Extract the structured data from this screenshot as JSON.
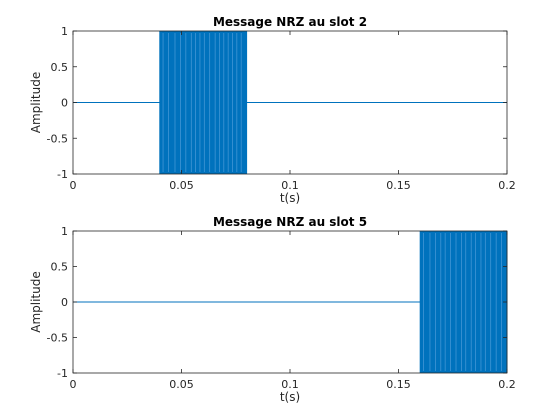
{
  "colors": {
    "series": "#0072BD",
    "axes": "#262626",
    "background": "#ffffff"
  },
  "chart_data": [
    {
      "type": "line",
      "title": "Message NRZ au slot 2",
      "xlabel": "t(s)",
      "ylabel": "Amplitude",
      "xlim": [
        0,
        0.2
      ],
      "ylim": [
        -1,
        1
      ],
      "xticks": [
        0,
        0.05,
        0.1,
        0.15,
        0.2
      ],
      "xtick_labels": [
        "0",
        "0.05",
        "0.1",
        "0.15",
        "0.2"
      ],
      "yticks": [
        -1,
        -0.5,
        0,
        0.5,
        1
      ],
      "ytick_labels": [
        "-1",
        "-0.5",
        "0",
        "0.5",
        "1"
      ],
      "grid": false,
      "signal": {
        "baseline": 0,
        "active_interval": [
          0.04,
          0.08
        ],
        "amplitude": 1,
        "edges": [
          0.0415,
          0.044,
          0.047,
          0.0495,
          0.052,
          0.0545,
          0.0565,
          0.0585,
          0.0605,
          0.063,
          0.0655,
          0.0675,
          0.0695,
          0.0715,
          0.0735,
          0.0755,
          0.0775
        ]
      }
    },
    {
      "type": "line",
      "title": "Message NRZ au slot 5",
      "xlabel": "t(s)",
      "ylabel": "Amplitude",
      "xlim": [
        0,
        0.2
      ],
      "ylim": [
        -1,
        1
      ],
      "xticks": [
        0,
        0.05,
        0.1,
        0.15,
        0.2
      ],
      "xtick_labels": [
        "0",
        "0.05",
        "0.1",
        "0.15",
        "0.2"
      ],
      "yticks": [
        -1,
        -0.5,
        0,
        0.5,
        1
      ],
      "ytick_labels": [
        "-1",
        "-0.5",
        "0",
        "0.5",
        "1"
      ],
      "grid": false,
      "signal": {
        "baseline": 0,
        "active_interval": [
          0.16,
          0.2
        ],
        "amplitude": 1,
        "edges": [
          0.1615,
          0.1645,
          0.167,
          0.1695,
          0.1715,
          0.174,
          0.1765,
          0.179,
          0.181,
          0.1835,
          0.1855,
          0.188,
          0.19,
          0.1925,
          0.195,
          0.1975
        ]
      }
    }
  ]
}
